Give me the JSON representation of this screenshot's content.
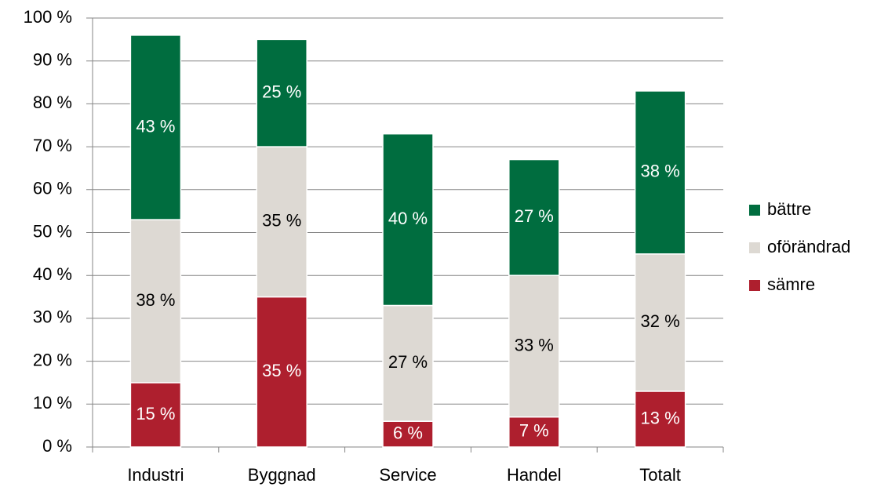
{
  "chart_data": {
    "type": "stacked_bar",
    "categories": [
      "Industri",
      "Byggnad",
      "Service",
      "Handel",
      "Totalt"
    ],
    "series": [
      {
        "name": "sämre",
        "color": "#ae1f2e",
        "values": [
          15,
          35,
          6,
          7,
          13
        ],
        "value_labels": [
          "15 %",
          "35 %",
          "6 %",
          "7 %",
          "13 %"
        ]
      },
      {
        "name": "oförändrad",
        "color": "#ddd9d3",
        "values": [
          38,
          35,
          27,
          33,
          32
        ],
        "value_labels": [
          "38 %",
          "35 %",
          "27 %",
          "33 %",
          "32 %"
        ]
      },
      {
        "name": "bättre",
        "color": "#006d3f",
        "values": [
          43,
          25,
          40,
          27,
          38
        ],
        "value_labels": [
          "43 %",
          "25 %",
          "40 %",
          "27 %",
          "38 %"
        ]
      }
    ],
    "ylim": [
      0,
      100
    ],
    "yticks": [
      {
        "value": 0,
        "label": "0 %"
      },
      {
        "value": 10,
        "label": "10 %"
      },
      {
        "value": 20,
        "label": "20 %"
      },
      {
        "value": 30,
        "label": "30 %"
      },
      {
        "value": 40,
        "label": "40 %"
      },
      {
        "value": 50,
        "label": "50 %"
      },
      {
        "value": 60,
        "label": "60 %"
      },
      {
        "value": 70,
        "label": "70 %"
      },
      {
        "value": 80,
        "label": "80 %"
      },
      {
        "value": 90,
        "label": "90 %"
      },
      {
        "value": 100,
        "label": "100 %"
      }
    ],
    "grid": true,
    "legend": "right"
  }
}
